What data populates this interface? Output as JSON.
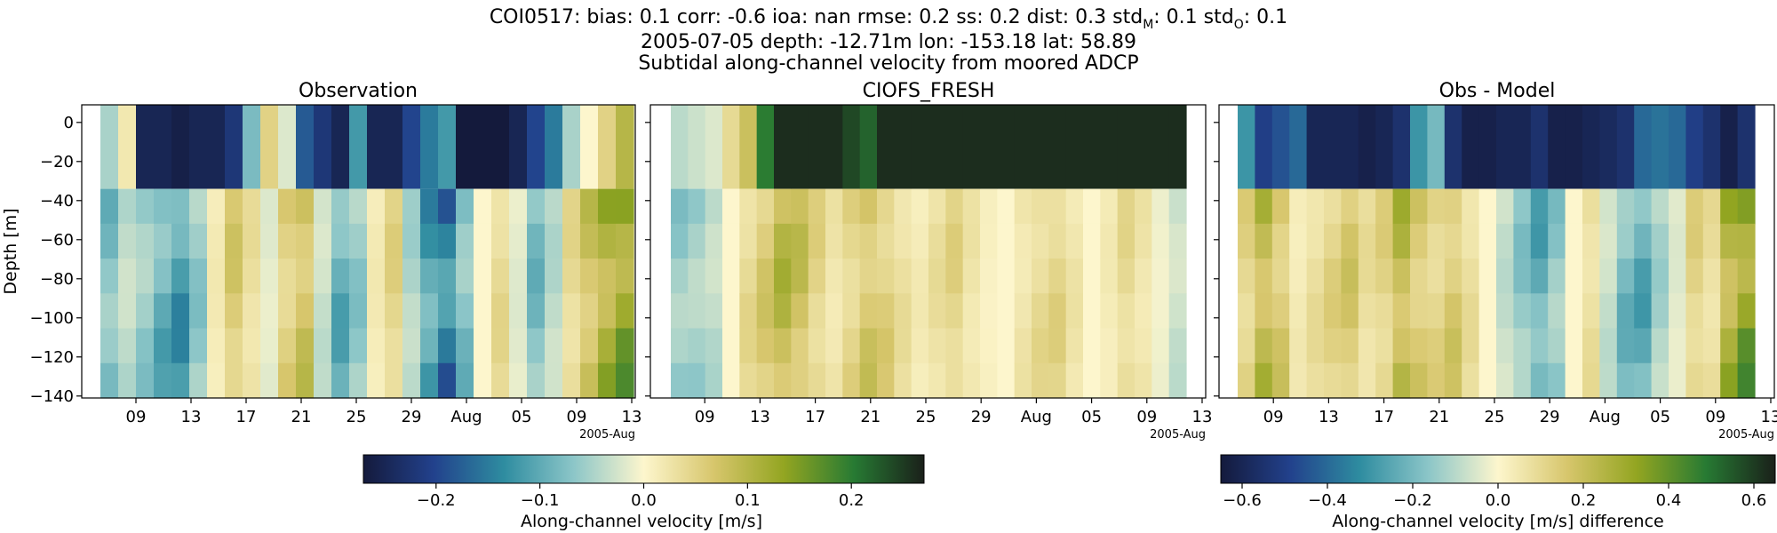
{
  "header": {
    "line1": "COI0517: bias: 0.1  corr: -0.6  ioa: nan  rmse: 0.2  ss: 0.2  dist: 0.3  std",
    "sub_m": "M",
    "mid": ": 0.1  std",
    "sub_o": "O",
    "tail": ": 0.1",
    "line2": "2005-07-05 depth: -12.71m lon: -153.18 lat: 58.89",
    "line3": "Subtidal along-channel velocity from moored ADCP"
  },
  "chart_data": [
    {
      "type": "heatmap",
      "title": "Observation",
      "ylabel": "Depth [m]",
      "x_tick_labels": [
        "09",
        "13",
        "17",
        "21",
        "25",
        "29",
        "Aug",
        "05",
        "09",
        "13"
      ],
      "x_offset_label": "2005-Aug",
      "x_range": [
        "2005-07-05",
        "2005-08-13"
      ],
      "y_ticks": [
        0,
        -20,
        -40,
        -60,
        -80,
        -100,
        -120,
        -140
      ],
      "y_range": [
        -141,
        9
      ],
      "colorbar": {
        "label": "Along-channel velocity [m/s]",
        "range": [
          -0.27,
          0.27
        ],
        "ticks": [
          -0.2,
          -0.1,
          0.0,
          0.1,
          0.2
        ],
        "tick_labels": [
          "−0.2",
          "−0.1",
          "0.0",
          "0.1",
          "0.2"
        ]
      }
    },
    {
      "type": "heatmap",
      "title": "CIOFS_FRESH",
      "x_tick_labels": [
        "09",
        "13",
        "17",
        "21",
        "25",
        "29",
        "Aug",
        "05",
        "09",
        "13"
      ],
      "x_offset_label": "2005-Aug",
      "x_range": [
        "2005-07-05",
        "2005-08-13"
      ],
      "y_range": [
        -141,
        9
      ]
    },
    {
      "type": "heatmap",
      "title": "Obs - Model",
      "x_tick_labels": [
        "09",
        "13",
        "17",
        "21",
        "25",
        "29",
        "Aug",
        "05",
        "09",
        "13"
      ],
      "x_offset_label": "2005-Aug",
      "x_range": [
        "2005-07-05",
        "2005-08-13"
      ],
      "y_range": [
        -141,
        9
      ],
      "colorbar": {
        "label": "Along-channel velocity [m/s] difference",
        "range": [
          -0.65,
          0.65
        ],
        "ticks": [
          -0.6,
          -0.4,
          -0.2,
          0.0,
          0.2,
          0.4,
          0.6
        ],
        "tick_labels": [
          "−0.6",
          "−0.4",
          "−0.2",
          "0.0",
          "0.2",
          "0.4",
          "0.6"
        ]
      }
    }
  ],
  "y_tick_labels": [
    "0",
    "−20",
    "−40",
    "−60",
    "−80",
    "−100",
    "−120",
    "−140"
  ],
  "colormap_stops": [
    "#141a3c",
    "#22418c",
    "#2e8ca0",
    "#8cc6c8",
    "#fdf6cd",
    "#d7c66c",
    "#93a521",
    "#277a33",
    "#1a201a"
  ],
  "panel_columns": [
    [
      -0.05,
      0.02,
      -0.25,
      -0.25,
      -0.26,
      -0.25,
      -0.25,
      -0.22,
      -0.08,
      0.05,
      -0.02,
      -0.18,
      -0.22,
      -0.25,
      -0.12,
      -0.25,
      -0.25,
      -0.2,
      -0.15,
      -0.12,
      -0.27,
      -0.27,
      -0.27,
      -0.25,
      -0.2,
      -0.15,
      -0.05,
      0.0,
      0.05,
      0.1
    ],
    [
      -0.04,
      -0.03,
      -0.02,
      0.04,
      0.08,
      0.2,
      0.26,
      0.26,
      0.26,
      0.26,
      0.24,
      0.22,
      0.26,
      0.26,
      0.26,
      0.26,
      0.26,
      0.26,
      0.26,
      0.26,
      0.26,
      0.26,
      0.26,
      0.26,
      0.26,
      0.26,
      0.26,
      0.26,
      0.26,
      0.26
    ],
    [
      -0.3,
      -0.5,
      -0.45,
      -0.4,
      -0.6,
      -0.6,
      -0.6,
      -0.62,
      -0.6,
      -0.55,
      -0.3,
      -0.2,
      -0.55,
      -0.62,
      -0.62,
      -0.6,
      -0.6,
      -0.55,
      -0.62,
      -0.62,
      -0.6,
      -0.58,
      -0.55,
      -0.4,
      -0.38,
      -0.4,
      -0.5,
      -0.55,
      -0.62,
      -0.55
    ]
  ],
  "panel_lower": [
    [
      -0.1,
      -0.05,
      -0.08,
      -0.12,
      -0.15,
      -0.08,
      0.02,
      0.08,
      0.04,
      -0.02,
      0.07,
      0.1,
      -0.04,
      -0.12,
      -0.08,
      0.02,
      0.06,
      -0.06,
      -0.15,
      -0.2,
      -0.1,
      0.0,
      0.05,
      -0.02,
      -0.1,
      -0.05,
      0.05,
      0.1,
      0.15,
      0.18
    ],
    [
      -0.08,
      -0.07,
      -0.05,
      0.0,
      0.05,
      0.08,
      0.12,
      0.1,
      0.06,
      0.03,
      0.06,
      0.09,
      0.07,
      0.04,
      0.02,
      0.04,
      0.06,
      0.03,
      0.01,
      0.0,
      0.03,
      0.05,
      0.06,
      0.03,
      0.0,
      0.02,
      0.05,
      0.03,
      -0.01,
      -0.04
    ],
    [
      0.15,
      0.3,
      0.2,
      0.05,
      0.1,
      0.15,
      0.2,
      0.1,
      0.15,
      0.3,
      0.2,
      0.15,
      0.2,
      0.1,
      0.0,
      -0.1,
      -0.2,
      -0.3,
      -0.2,
      0.0,
      0.1,
      -0.1,
      -0.25,
      -0.3,
      -0.15,
      -0.05,
      0.15,
      0.1,
      0.35,
      0.45
    ]
  ]
}
